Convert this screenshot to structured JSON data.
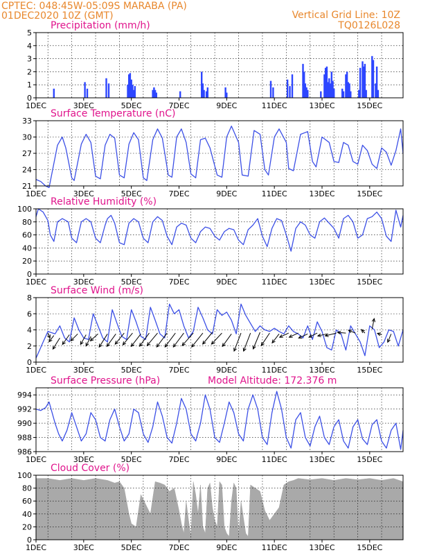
{
  "header": {
    "line1_left": "CPTEC:   048:45W-05:09S  MARABA (PA)",
    "line2_left": "01DEC2020 10Z (GMT)",
    "line1_right": "Vertical Grid Line: 10Z",
    "line2_right": "TQ0126L028"
  },
  "x_tick_labels": [
    "1DEC",
    "3DEC",
    "5DEC",
    "7DEC",
    "9DEC",
    "11DEC",
    "13DEC",
    "15DEC"
  ],
  "colors": {
    "header": "#e8872c",
    "panel_title": "#e0148c",
    "series": "#3b4fe6",
    "bars": "#2d46ff",
    "cloud": "#a9a9a9",
    "arrows": "#000000"
  },
  "chart_data": [
    {
      "type": "bar",
      "title": "Precipitation (mm/h)",
      "ylim": [
        0,
        5
      ],
      "yticks": [
        0,
        1,
        2,
        3,
        4,
        5
      ],
      "x_unit": "days since 1DEC 10Z",
      "x": [
        0.75,
        2.05,
        2.15,
        2.95,
        3.05,
        3.85,
        3.9,
        3.95,
        4.0,
        4.05,
        4.1,
        4.15,
        4.9,
        4.95,
        5.0,
        5.05,
        6.05,
        6.95,
        7.0,
        7.05,
        7.15,
        7.2,
        7.95,
        8.0,
        9.85,
        9.95,
        10.55,
        10.65,
        10.75,
        11.2,
        11.25,
        11.3,
        11.35,
        11.4,
        11.95,
        12.1,
        12.15,
        12.2,
        12.25,
        12.3,
        12.35,
        12.4,
        12.45,
        12.5,
        12.85,
        12.9,
        13.0,
        13.05,
        13.1,
        13.15,
        13.2,
        13.55,
        13.6,
        13.7,
        13.75,
        13.8,
        13.85,
        14.1,
        14.15,
        14.25,
        14.3,
        14.35
      ],
      "values": [
        0.7,
        1.2,
        0.7,
        1.5,
        1.1,
        1.0,
        1.8,
        1.9,
        1.4,
        1.0,
        0.6,
        0.9,
        0.6,
        0.8,
        0.6,
        0.4,
        0.5,
        2.0,
        1.1,
        0.6,
        0.5,
        0.8,
        0.8,
        0.4,
        1.3,
        0.8,
        1.4,
        0.9,
        1.8,
        2.6,
        2.0,
        1.1,
        0.8,
        0.6,
        0.5,
        1.8,
        2.3,
        2.4,
        1.2,
        1.5,
        1.1,
        2.0,
        1.3,
        0.7,
        0.7,
        0.5,
        1.8,
        2.0,
        1.2,
        1.1,
        0.5,
        0.6,
        2.3,
        2.8,
        2.4,
        2.6,
        0.6,
        3.2,
        2.9,
        1.1,
        2.4,
        0.6
      ]
    },
    {
      "type": "line",
      "title": "Surface Temperature (nC)",
      "ylim": [
        21,
        33
      ],
      "yticks": [
        21,
        24,
        27,
        30,
        33
      ],
      "x_unit": "days since 1DEC 10Z",
      "x": [
        0,
        0.2,
        0.4,
        0.55,
        0.9,
        1.1,
        1.25,
        1.5,
        1.6,
        1.9,
        2.1,
        2.3,
        2.5,
        2.7,
        2.9,
        3.1,
        3.3,
        3.5,
        3.7,
        3.9,
        4.1,
        4.3,
        4.5,
        4.65,
        4.9,
        5.1,
        5.3,
        5.55,
        5.7,
        5.9,
        6.1,
        6.3,
        6.5,
        6.7,
        6.9,
        7.1,
        7.3,
        7.6,
        7.8,
        8.0,
        8.2,
        8.5,
        8.65,
        8.9,
        9.15,
        9.4,
        9.6,
        9.75,
        10.0,
        10.2,
        10.5,
        10.6,
        10.8,
        11.1,
        11.4,
        11.6,
        11.75,
        12.0,
        12.3,
        12.5,
        12.7,
        12.9,
        13.1,
        13.3,
        13.5,
        13.7,
        13.9,
        14.1,
        14.3,
        14.5,
        14.7,
        14.9,
        15.1,
        15.3,
        15.4
      ],
      "values": [
        22.2,
        21.8,
        21.0,
        20.7,
        28.5,
        30.0,
        28.0,
        22.5,
        22.0,
        28.7,
        30.5,
        29.0,
        22.8,
        22.3,
        28.5,
        30.5,
        29.8,
        23.0,
        22.5,
        28.7,
        30.8,
        29.5,
        22.5,
        22.0,
        29.5,
        31.5,
        29.8,
        23.0,
        22.6,
        30.0,
        31.5,
        29.0,
        23.2,
        22.5,
        29.5,
        29.8,
        28.0,
        23.0,
        22.6,
        30.0,
        32.0,
        29.0,
        23.0,
        22.8,
        31.2,
        30.5,
        24.0,
        23.0,
        30.0,
        31.5,
        29.0,
        24.2,
        23.8,
        30.5,
        31.0,
        25.5,
        24.5,
        30.0,
        29.0,
        25.5,
        25.3,
        29.0,
        28.5,
        25.5,
        25.0,
        28.5,
        27.5,
        25.0,
        24.2,
        28.0,
        27.2,
        24.8,
        27.5,
        31.5,
        27.0
      ]
    },
    {
      "type": "line",
      "title": "Relative Humidity (%)",
      "ylim": [
        0,
        100
      ],
      "yticks": [
        0,
        20,
        40,
        60,
        80,
        100
      ],
      "x_unit": "days since 1DEC 10Z",
      "x": [
        0,
        0.1,
        0.3,
        0.5,
        0.6,
        0.75,
        0.9,
        1.1,
        1.35,
        1.5,
        1.7,
        1.9,
        2.1,
        2.3,
        2.5,
        2.7,
        2.9,
        3.0,
        3.15,
        3.3,
        3.5,
        3.7,
        3.9,
        4.1,
        4.3,
        4.5,
        4.7,
        4.9,
        5.1,
        5.3,
        5.5,
        5.7,
        5.9,
        6.1,
        6.3,
        6.5,
        6.7,
        6.9,
        7.1,
        7.3,
        7.5,
        7.7,
        7.9,
        8.1,
        8.3,
        8.5,
        8.7,
        8.9,
        9.1,
        9.3,
        9.5,
        9.7,
        9.9,
        10.1,
        10.3,
        10.5,
        10.7,
        10.9,
        11.1,
        11.3,
        11.5,
        11.7,
        11.9,
        12.1,
        12.3,
        12.5,
        12.7,
        12.9,
        13.1,
        13.3,
        13.5,
        13.7,
        13.9,
        14.1,
        14.3,
        14.5,
        14.7,
        14.9,
        15.1,
        15.3,
        15.4
      ],
      "values": [
        88,
        100,
        95,
        82,
        60,
        50,
        80,
        85,
        80,
        55,
        48,
        80,
        85,
        80,
        55,
        48,
        75,
        85,
        90,
        78,
        48,
        45,
        78,
        85,
        80,
        55,
        48,
        80,
        88,
        82,
        58,
        45,
        72,
        78,
        75,
        55,
        48,
        65,
        72,
        70,
        58,
        52,
        65,
        70,
        68,
        52,
        45,
        68,
        75,
        85,
        58,
        42,
        70,
        85,
        82,
        60,
        35,
        70,
        80,
        75,
        60,
        55,
        80,
        86,
        78,
        70,
        55,
        85,
        90,
        80,
        55,
        60,
        85,
        88,
        95,
        85,
        58,
        50,
        98,
        72,
        90
      ]
    },
    {
      "type": "line",
      "title": "Surface Wind (m/s)",
      "ylim": [
        0,
        8
      ],
      "yticks": [
        0,
        2,
        4,
        6,
        8
      ],
      "x_unit": "days since 1DEC 10Z",
      "x": [
        0,
        0.15,
        0.3,
        0.5,
        0.8,
        1.0,
        1.2,
        1.4,
        1.6,
        1.8,
        2.0,
        2.2,
        2.4,
        2.6,
        2.8,
        3.0,
        3.2,
        3.4,
        3.6,
        3.8,
        4.0,
        4.2,
        4.4,
        4.6,
        4.8,
        5.0,
        5.2,
        5.4,
        5.6,
        5.8,
        6.0,
        6.2,
        6.4,
        6.6,
        6.8,
        7.0,
        7.2,
        7.4,
        7.6,
        7.8,
        8.0,
        8.2,
        8.4,
        8.6,
        8.8,
        9.0,
        9.2,
        9.4,
        9.6,
        9.8,
        10.0,
        10.2,
        10.4,
        10.6,
        10.8,
        11.0,
        11.2,
        11.4,
        11.6,
        11.8,
        12.0,
        12.2,
        12.4,
        12.6,
        12.8,
        13.0,
        13.2,
        13.4,
        13.6,
        13.8,
        14.0,
        14.2,
        14.4,
        14.6,
        14.8,
        15.0,
        15.2,
        15.4
      ],
      "values": [
        0.5,
        1.5,
        2.5,
        3.8,
        3.5,
        4.5,
        3.0,
        2.5,
        5.5,
        4.0,
        3.0,
        2.8,
        6.0,
        4.5,
        3.0,
        2.5,
        6.5,
        4.8,
        3.2,
        2.8,
        6.5,
        5.0,
        3.2,
        2.8,
        6.8,
        5.2,
        3.5,
        3.0,
        7.2,
        6.0,
        6.5,
        4.5,
        3.0,
        3.8,
        6.8,
        5.5,
        4.0,
        3.5,
        6.5,
        5.8,
        6.2,
        5.2,
        3.5,
        7.2,
        5.8,
        4.8,
        3.8,
        4.5,
        4.0,
        3.8,
        4.2,
        3.8,
        3.5,
        4.5,
        3.8,
        3.5,
        3.0,
        4.5,
        2.8,
        5.0,
        3.8,
        1.8,
        1.5,
        4.0,
        3.5,
        1.5,
        4.5,
        3.5,
        2.5,
        0.8,
        4.5,
        4.0,
        1.8,
        2.5,
        4.0,
        3.8,
        2.0,
        4.0
      ],
      "wind_vectors": {
        "unit": "arrow direction shows wind flow; y = arrow origin in m/s",
        "x": [
          0.5,
          0.75,
          1.0,
          1.4,
          1.75,
          2.1,
          2.3,
          2.6,
          3.0,
          3.35,
          3.7,
          4.05,
          4.4,
          4.75,
          5.1,
          5.5,
          5.85,
          6.2,
          6.6,
          7.0,
          7.4,
          7.8,
          8.2,
          8.6,
          9.0,
          9.4,
          9.8,
          10.2,
          10.6,
          11.0,
          11.4,
          11.8,
          12.2,
          12.6,
          13.0,
          13.4,
          13.8,
          14.1,
          14.5,
          14.9
        ],
        "y": [
          3.6,
          3.3,
          3.0,
          3.4,
          3.5,
          3.4,
          3.2,
          3.5,
          3.5,
          3.5,
          3.6,
          3.6,
          3.5,
          3.6,
          3.6,
          3.6,
          3.6,
          3.6,
          3.6,
          3.6,
          3.7,
          3.6,
          3.5,
          3.6,
          3.6,
          3.7,
          3.6,
          3.5,
          3.6,
          3.6,
          3.5,
          3.6,
          3.5,
          3.6,
          3.6,
          3.6,
          3.6,
          4.1,
          3.4,
          3.5
        ],
        "u": [
          0.3,
          -0.7,
          -1.0,
          -1.0,
          -1.0,
          -0.8,
          -0.7,
          -1.1,
          -1.2,
          -1.3,
          -1.3,
          -1.4,
          -1.4,
          -1.4,
          -1.5,
          -1.5,
          -1.5,
          -1.5,
          -1.6,
          -1.6,
          -1.4,
          -1.5,
          -1.3,
          -1.0,
          -1.0,
          -1.0,
          -1.2,
          -1.0,
          -1.3,
          -1.3,
          -1.3,
          -1.2,
          -1.3,
          -1.6,
          -1.2,
          -1.0,
          -0.5,
          0.3,
          -0.6,
          -0.5
        ],
        "v": [
          -0.7,
          -0.9,
          -1.6,
          -1.4,
          -1.0,
          -1.4,
          -1.4,
          -1.0,
          -1.9,
          -1.8,
          -1.6,
          -1.7,
          -1.8,
          -1.9,
          -1.8,
          -2.0,
          -2.0,
          -2.0,
          -1.8,
          -2.0,
          -1.7,
          -1.6,
          -1.8,
          -2.6,
          -2.6,
          -2.4,
          -1.8,
          -1.3,
          -0.6,
          -0.6,
          -0.6,
          -0.6,
          -0.3,
          -0.4,
          0.1,
          0.4,
          0.5,
          1.5,
          0.2,
          -1.2
        ]
      }
    },
    {
      "type": "line",
      "title": "Surface Pressure (hPa)",
      "subtitle": "Model Altitude: 172.376  m",
      "ylim": [
        986,
        995
      ],
      "yticks": [
        986,
        988,
        990,
        992,
        994
      ],
      "x_unit": "days since 1DEC 10Z",
      "x": [
        0,
        0.2,
        0.4,
        0.55,
        0.8,
        0.95,
        1.1,
        1.3,
        1.5,
        1.7,
        1.9,
        2.1,
        2.3,
        2.5,
        2.7,
        2.9,
        3.1,
        3.3,
        3.5,
        3.7,
        3.9,
        4.1,
        4.3,
        4.5,
        4.7,
        4.9,
        5.1,
        5.3,
        5.5,
        5.7,
        5.9,
        6.1,
        6.3,
        6.5,
        6.7,
        6.9,
        7.1,
        7.3,
        7.5,
        7.7,
        7.9,
        8.1,
        8.3,
        8.5,
        8.7,
        8.9,
        9.1,
        9.3,
        9.5,
        9.7,
        9.9,
        10.1,
        10.3,
        10.5,
        10.7,
        10.9,
        11.1,
        11.3,
        11.5,
        11.7,
        11.9,
        12.1,
        12.3,
        12.5,
        12.7,
        12.9,
        13.1,
        13.3,
        13.5,
        13.7,
        13.9,
        14.1,
        14.3,
        14.5,
        14.7,
        14.9,
        15.1,
        15.3,
        15.4
      ],
      "values": [
        992.0,
        991.8,
        992.2,
        993.0,
        990.0,
        988.5,
        987.5,
        989.0,
        991.5,
        989.5,
        987.5,
        988.5,
        991.5,
        990.5,
        988.0,
        987.5,
        990.5,
        992.0,
        989.5,
        987.5,
        988.5,
        992.0,
        991.5,
        988.5,
        987.3,
        989.5,
        993.0,
        991.0,
        988.0,
        987.2,
        990.0,
        993.5,
        992.0,
        988.5,
        987.5,
        990.0,
        994.0,
        992.0,
        988.0,
        987.3,
        990.0,
        993.0,
        991.5,
        988.5,
        987.5,
        992.0,
        994.0,
        992.0,
        988.0,
        987.0,
        991.5,
        994.5,
        992.0,
        988.0,
        986.5,
        990.5,
        991.5,
        988.0,
        986.8,
        989.5,
        991.0,
        988.0,
        987.0,
        989.5,
        990.5,
        987.5,
        986.5,
        989.5,
        990.5,
        987.8,
        987.0,
        989.8,
        990.5,
        987.5,
        986.5,
        989.0,
        990.0,
        986.3,
        989.0
      ]
    },
    {
      "type": "area",
      "title": "Cloud Cover (%)",
      "ylim": [
        0,
        100
      ],
      "yticks": [
        0,
        20,
        40,
        60,
        80,
        100
      ],
      "x_unit": "days since 1DEC 10Z",
      "x": [
        0,
        0.5,
        1.0,
        1.5,
        2.0,
        2.5,
        3.0,
        3.3,
        3.5,
        3.7,
        3.9,
        4.0,
        4.2,
        4.4,
        4.6,
        4.8,
        5.0,
        5.2,
        5.4,
        5.6,
        5.8,
        6.0,
        6.1,
        6.2,
        6.3,
        6.4,
        6.5,
        6.6,
        6.7,
        6.8,
        6.9,
        7.0,
        7.1,
        7.2,
        7.3,
        7.4,
        7.5,
        7.6,
        7.7,
        7.8,
        7.9,
        8.0,
        8.1,
        8.2,
        8.3,
        8.4,
        8.5,
        8.6,
        8.7,
        8.8,
        8.9,
        9.0,
        9.2,
        9.4,
        9.6,
        9.8,
        10.0,
        10.2,
        10.4,
        10.6,
        10.8,
        11.0,
        11.5,
        12.0,
        12.5,
        13.0,
        13.5,
        14.0,
        14.5,
        15.0,
        15.4
      ],
      "values": [
        95,
        95,
        92,
        95,
        92,
        95,
        92,
        88,
        90,
        80,
        40,
        25,
        20,
        70,
        55,
        40,
        90,
        88,
        85,
        75,
        80,
        45,
        25,
        10,
        60,
        30,
        5,
        90,
        70,
        40,
        85,
        20,
        10,
        80,
        88,
        50,
        30,
        20,
        90,
        85,
        20,
        10,
        5,
        60,
        88,
        80,
        5,
        60,
        35,
        10,
        5,
        85,
        80,
        75,
        45,
        30,
        40,
        50,
        85,
        90,
        92,
        95,
        93,
        95,
        92,
        95,
        93,
        95,
        92,
        95,
        90
      ]
    }
  ]
}
